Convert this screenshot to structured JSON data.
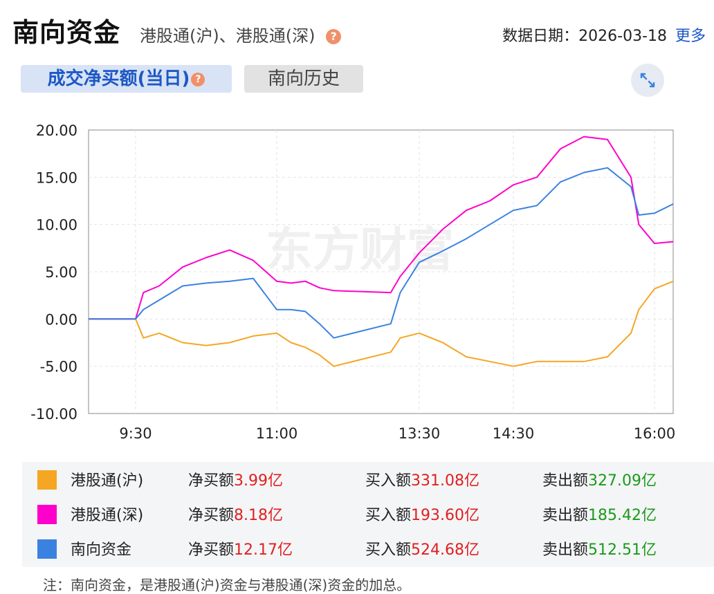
{
  "header": {
    "title": "南向资金",
    "subtitle": "港股通(沪)、港股通(深)",
    "help_icon": "?",
    "date_text": "数据日期：2026-03-18",
    "more_link": "更多"
  },
  "tabs": {
    "active": "成交净买额(当日)",
    "inactive": "南向历史"
  },
  "icons": {
    "help": "question-circle-icon",
    "expand": "expand-arrows-icon"
  },
  "watermark": "东方财富",
  "colors": {
    "hu": "#f5a623",
    "shen": "#ff00cc",
    "south": "#3b82e0",
    "positive": "#e02020",
    "negative": "#1a9a1a",
    "link": "#1d57c5"
  },
  "chart_data": {
    "type": "line",
    "title": "",
    "xlabel": "",
    "ylabel": "",
    "ylim": [
      -10,
      20
    ],
    "yticks": [
      "20.00",
      "15.00",
      "10.00",
      "5.00",
      "0.00",
      "-5.00",
      "-10.00"
    ],
    "xticks": [
      "9:30",
      "11:00",
      "13:30",
      "14:30",
      "16:00"
    ],
    "x": [
      "9:00",
      "9:20",
      "9:30",
      "9:35",
      "9:45",
      "10:00",
      "10:15",
      "10:30",
      "10:45",
      "11:00",
      "11:15",
      "11:30",
      "11:45",
      "12:00",
      "13:00",
      "13:10",
      "13:30",
      "13:45",
      "14:00",
      "14:15",
      "14:30",
      "14:45",
      "15:00",
      "15:15",
      "15:30",
      "15:45",
      "15:50",
      "16:00",
      "16:10"
    ],
    "series": [
      {
        "name": "港股通(沪)",
        "color": "#f5a623",
        "values": [
          0,
          0,
          0,
          -2.0,
          -1.5,
          -2.5,
          -2.8,
          -2.5,
          -1.8,
          -1.5,
          -2.5,
          -3.0,
          -3.8,
          -5.0,
          -3.5,
          -2.0,
          -1.5,
          -2.5,
          -4.0,
          -4.5,
          -5.0,
          -4.5,
          -4.5,
          -4.5,
          -4.0,
          -1.5,
          1.0,
          3.2,
          3.99
        ]
      },
      {
        "name": "港股通(深)",
        "color": "#ff00cc",
        "values": [
          0,
          0,
          0,
          2.8,
          3.5,
          5.5,
          6.5,
          7.3,
          6.2,
          4.0,
          3.8,
          4.0,
          3.3,
          3.0,
          2.8,
          4.5,
          7.0,
          9.5,
          11.5,
          12.5,
          14.2,
          15.0,
          18.0,
          19.3,
          19.0,
          15.0,
          10.0,
          8.0,
          8.18
        ]
      },
      {
        "name": "南向资金",
        "color": "#3b82e0",
        "values": [
          0,
          0,
          0,
          1.0,
          2.0,
          3.5,
          3.8,
          4.0,
          4.3,
          1.0,
          1.0,
          0.8,
          -0.5,
          -2.0,
          -0.5,
          2.8,
          6.0,
          7.2,
          8.5,
          10.0,
          11.5,
          12.0,
          14.5,
          15.5,
          16.0,
          14.0,
          11.0,
          11.2,
          12.17
        ]
      }
    ]
  },
  "legend": {
    "rows": [
      {
        "name": "港股通(沪)",
        "color": "#f5a623",
        "net_label": "净买额",
        "net_value": "3.99亿",
        "buy_label": "买入额",
        "buy_value": "331.08亿",
        "sell_label": "卖出额",
        "sell_value": "327.09亿"
      },
      {
        "name": "港股通(深)",
        "color": "#ff00cc",
        "net_label": "净买额",
        "net_value": "8.18亿",
        "buy_label": "买入额",
        "buy_value": "193.60亿",
        "sell_label": "卖出额",
        "sell_value": "185.42亿"
      },
      {
        "name": "南向资金",
        "color": "#3b82e0",
        "net_label": "净买额",
        "net_value": "12.17亿",
        "buy_label": "买入额",
        "buy_value": "524.68亿",
        "sell_label": "卖出额",
        "sell_value": "512.51亿"
      }
    ]
  },
  "note": "注：南向资金，是港股通(沪)资金与港股通(深)资金的加总。"
}
